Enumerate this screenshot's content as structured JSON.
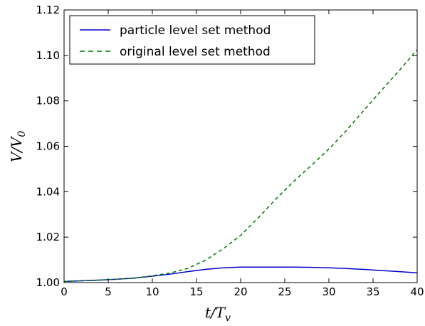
{
  "chart_data": {
    "type": "line",
    "xlabel": {
      "main": "t/T",
      "sub": "v"
    },
    "ylabel": {
      "main": "V/V",
      "sub": "0"
    },
    "xlim": [
      0,
      40
    ],
    "ylim": [
      1.0,
      1.12
    ],
    "xticks": [
      0,
      5,
      10,
      15,
      20,
      25,
      30,
      35,
      40
    ],
    "yticks": [
      1.0,
      1.02,
      1.04,
      1.06,
      1.08,
      1.1,
      1.12
    ],
    "ytick_labels": [
      "1.00",
      "1.02",
      "1.04",
      "1.06",
      "1.08",
      "1.10",
      "1.12"
    ],
    "legend_position": "top-left",
    "grid": false,
    "series": [
      {
        "name": "particle level set method",
        "color": "#0000cc",
        "style": "solid",
        "x": [
          0,
          2,
          4,
          6,
          8,
          10,
          12,
          14,
          16,
          18,
          20,
          22,
          24,
          26,
          28,
          30,
          32,
          34,
          36,
          38,
          40
        ],
        "y": [
          1.0005,
          1.0008,
          1.0011,
          1.0015,
          1.002,
          1.0028,
          1.0037,
          1.0048,
          1.0058,
          1.0065,
          1.0068,
          1.0068,
          1.0068,
          1.0068,
          1.0067,
          1.0065,
          1.0062,
          1.0058,
          1.0053,
          1.0048,
          1.0043
        ]
      },
      {
        "name": "original level set method",
        "color": "#007700",
        "style": "dashed",
        "x": [
          0,
          2,
          4,
          6,
          8,
          10,
          12,
          14,
          16,
          18,
          20,
          22,
          24,
          26,
          28,
          30,
          32,
          34,
          36,
          38,
          40
        ],
        "y": [
          1.0005,
          1.0008,
          1.0011,
          1.0015,
          1.002,
          1.003,
          1.0042,
          1.0062,
          1.0098,
          1.0148,
          1.0208,
          1.0285,
          1.0368,
          1.0445,
          1.0515,
          1.0588,
          1.067,
          1.076,
          1.0848,
          1.0935,
          1.1025
        ]
      }
    ]
  }
}
